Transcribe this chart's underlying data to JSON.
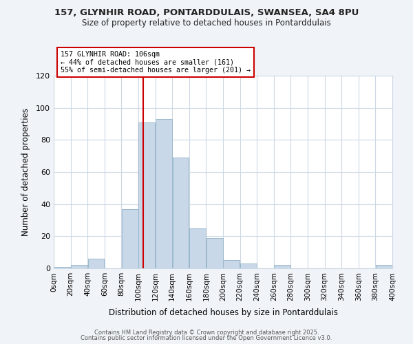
{
  "title": "157, GLYNHIR ROAD, PONTARDDULAIS, SWANSEA, SA4 8PU",
  "subtitle": "Size of property relative to detached houses in Pontarddulais",
  "xlabel": "Distribution of detached houses by size in Pontarddulais",
  "ylabel": "Number of detached properties",
  "bar_color": "#c8d8e8",
  "bar_edge_color": "#9ab8cc",
  "bin_edges": [
    0,
    20,
    40,
    60,
    80,
    100,
    120,
    140,
    160,
    180,
    200,
    220,
    240,
    260,
    280,
    300,
    320,
    340,
    360,
    380,
    400
  ],
  "bar_heights": [
    1,
    2,
    6,
    0,
    37,
    91,
    93,
    69,
    25,
    19,
    5,
    3,
    0,
    2,
    0,
    0,
    0,
    0,
    0,
    2
  ],
  "vline_x": 106,
  "vline_color": "#cc0000",
  "annotation_title": "157 GLYNHIR ROAD: 106sqm",
  "annotation_line2": "← 44% of detached houses are smaller (161)",
  "annotation_line3": "55% of semi-detached houses are larger (201) →",
  "annotation_box_color": "#cc0000",
  "annotation_bg": "#ffffff",
  "xlim": [
    0,
    400
  ],
  "ylim": [
    0,
    120
  ],
  "yticks": [
    0,
    20,
    40,
    60,
    80,
    100,
    120
  ],
  "xtick_labels": [
    "0sqm",
    "20sqm",
    "40sqm",
    "60sqm",
    "80sqm",
    "100sqm",
    "120sqm",
    "140sqm",
    "160sqm",
    "180sqm",
    "200sqm",
    "220sqm",
    "240sqm",
    "260sqm",
    "280sqm",
    "300sqm",
    "320sqm",
    "340sqm",
    "360sqm",
    "380sqm",
    "400sqm"
  ],
  "grid_color": "#ccd8e4",
  "footer1": "Contains HM Land Registry data © Crown copyright and database right 2025.",
  "footer2": "Contains public sector information licensed under the Open Government Licence v3.0.",
  "background_color": "#f0f4f8",
  "axes_bg": "#ffffff"
}
